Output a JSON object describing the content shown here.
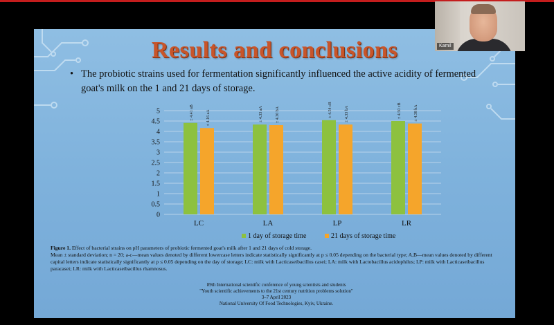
{
  "slide": {
    "title": "Results and conclusions",
    "bullet": "The probiotic strains used for fermentation significantly influenced the active acidity of fermented goat's milk on the 1 and 21 days of storage.",
    "caption": {
      "figure_label": "Figure 1.",
      "line1": " Effect of bacterial strains on pH parameters of probiotic fermented goat's milk after 1 and 21 days of cold storage.",
      "line2": "Mean ± standard deviation; n = 20; a-c—mean values denoted by different lowercase letters indicate statistically significantly at p ≤ 0.05 depending on the bacterial type; A,B—mean values denoted by different capital letters indicate statistically significantly at p ≤ 0.05 depending on the day of storage; LC: milk with Lacticaseibacillus casei; LA: milk with Lactobacillus acidophilus; LP: milk with Lacticaseibacillus paracasei; LR: milk with Lacticaseibacillus rhamnosus."
    },
    "conference": {
      "line1": "89th International scientific conference of young scientists and students",
      "line2": "\"Youth scientific achievements to the 21st century nutrition problems solution\"",
      "line3": "3–7 April 2023",
      "line4": "National University Of Food Technologies, Kyiv, Ukraine."
    }
  },
  "webcam": {
    "participant_name": "Kamil"
  },
  "colors": {
    "series_day1": "#8dc13f",
    "series_day21": "#f5a52b",
    "title": "#c8552a",
    "slide_bg": "#85b7e0"
  },
  "chart_data": {
    "type": "bar",
    "categories": [
      "LC",
      "LA",
      "LP",
      "LR"
    ],
    "series": [
      {
        "name": "1 day of storage time",
        "values": [
          4.41,
          4.33,
          4.54,
          4.5
        ],
        "labels": [
          "± 4.41 aB",
          "± 4.33 aA",
          "± 4.54 cB",
          "± 4.50 cB"
        ]
      },
      {
        "name": "21 days of storage time",
        "values": [
          4.16,
          4.3,
          4.33,
          4.38
        ],
        "labels": [
          "± 4.16 aA",
          "± 4.30 bA",
          "± 4.33 bA",
          "± 4.38 bA"
        ]
      }
    ],
    "yticks": [
      "0",
      "0.5",
      "1",
      "1.5",
      "2",
      "2.5",
      "3",
      "3.5",
      "4",
      "4.5",
      "5"
    ],
    "ylim": [
      0,
      5
    ],
    "grid": true,
    "legend_position": "bottom"
  }
}
